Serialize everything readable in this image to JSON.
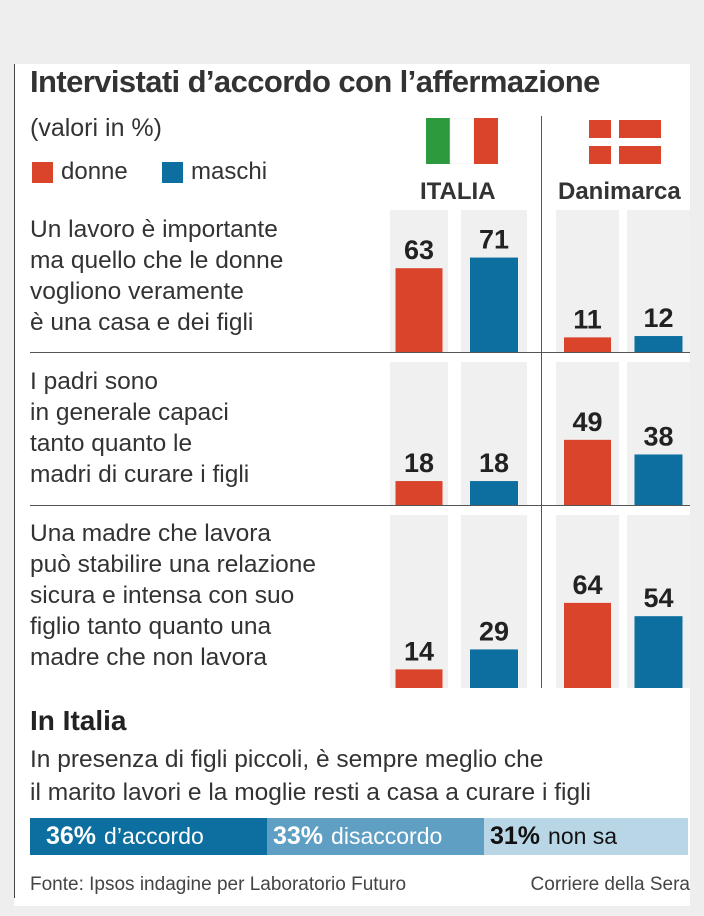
{
  "header": {
    "title": "Intervistati d’accordo con l’affermazione",
    "subtitle": "(valori in %)"
  },
  "legend": [
    {
      "label": "donne",
      "color": "#d9442a"
    },
    {
      "label": "maschi",
      "color": "#0d6fa0"
    }
  ],
  "countries": [
    {
      "name": "ITALIA",
      "flag": [
        "#2e9a3e",
        "#ffffff",
        "#d9442a"
      ]
    },
    {
      "name": "Danimarca",
      "flag": [
        "#d9442a",
        "#ffffff"
      ]
    }
  ],
  "chart_data": {
    "type": "bar",
    "title": "Intervistati d’accordo con l’affermazione",
    "subtitle": "(valori in %)",
    "unit": "%",
    "ylim": [
      0,
      100
    ],
    "groups": [
      "ITALIA",
      "Danimarca"
    ],
    "series_names": [
      "donne",
      "maschi"
    ],
    "colors": {
      "donne": "#d9442a",
      "maschi": "#0d6fa0"
    },
    "questions": [
      {
        "text": "Un lavoro è importante\nma quello che le donne\nvogliono veramente\nè una casa e dei figli",
        "values": {
          "ITALIA": {
            "donne": 63,
            "maschi": 71
          },
          "Danimarca": {
            "donne": 11,
            "maschi": 12
          }
        }
      },
      {
        "text": "I padri sono\nin generale capaci\ntanto quanto le\nmadri di curare i figli",
        "values": {
          "ITALIA": {
            "donne": 18,
            "maschi": 18
          },
          "Danimarca": {
            "donne": 49,
            "maschi": 38
          }
        }
      },
      {
        "text": "Una madre che lavora\npuò stabilire una relazione\nsicura e intensa con suo\nfiglio tanto quanto una\nmadre che non lavora",
        "values": {
          "ITALIA": {
            "donne": 14,
            "maschi": 29
          },
          "Danimarca": {
            "donne": 64,
            "maschi": 54
          }
        }
      }
    ]
  },
  "italy_section": {
    "title": "In Italia",
    "statement_line1": "In presenza di figli piccoli, è sempre meglio che",
    "statement_line2": "il marito lavori e la moglie resti a casa a curare i figli",
    "results": [
      {
        "value": "36%",
        "label": "d’accordo",
        "share": 36,
        "bg": "#0d6fa0",
        "fg": "#ffffff"
      },
      {
        "value": "33%",
        "label": "disaccordo",
        "share": 33,
        "bg": "#5f9fc4",
        "fg": "#ffffff"
      },
      {
        "value": "31%",
        "label": "non sa",
        "share": 31,
        "bg": "#b9d6e6",
        "fg": "#111111"
      }
    ]
  },
  "footer": {
    "source": "Fonte: Ipsos indagine per Laboratorio Futuro",
    "credit": "Corriere della Sera"
  }
}
